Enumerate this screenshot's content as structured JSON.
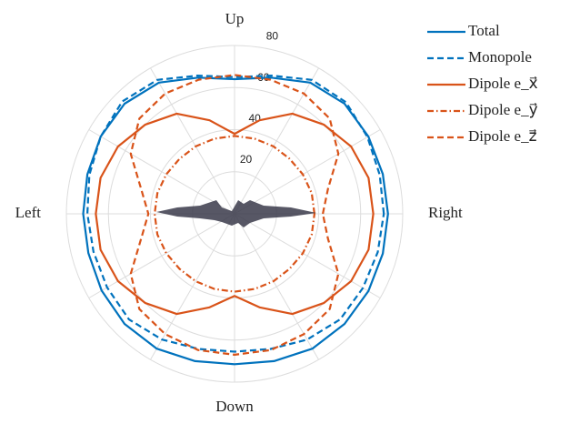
{
  "chart_data": {
    "type": "polar",
    "theta": [
      0,
      15,
      30,
      45,
      60,
      75,
      90,
      105,
      120,
      135,
      150,
      165,
      180,
      195,
      210,
      225,
      240,
      255,
      270,
      285,
      300,
      315,
      330,
      345
    ],
    "rlim": [
      0,
      80
    ],
    "rticks": [
      20,
      40,
      60,
      80
    ],
    "thetagrid": [
      0,
      30,
      60,
      90,
      120,
      150,
      180,
      210,
      240,
      270,
      300,
      330
    ],
    "thetaticks": [
      {
        "value": 90,
        "label": "Up"
      },
      {
        "value": 0,
        "label": "Right"
      },
      {
        "value": 180,
        "label": "Left"
      },
      {
        "value": 270,
        "label": "Down"
      }
    ],
    "series": [
      {
        "name": "Total",
        "color": "#0072bd",
        "linestyle": "solid",
        "values": [
          73,
          73,
          73.5,
          74,
          72,
          67,
          64,
          67,
          72,
          74,
          73.5,
          72.5,
          72,
          72,
          73,
          74,
          74,
          72.5,
          71.5,
          72.5,
          74,
          74,
          73.5,
          73
        ]
      },
      {
        "name": "Monopole",
        "color": "#0072bd",
        "linestyle": "dashed",
        "values": [
          71,
          71.5,
          73,
          75,
          73.5,
          68,
          65,
          68,
          73.5,
          75.5,
          73.5,
          71.5,
          70,
          69.5,
          70,
          71,
          69,
          66.5,
          65.5,
          66.5,
          69,
          71,
          70.5,
          70.5
        ]
      },
      {
        "name": "Dipole e_x⃗",
        "color": "#d95319",
        "linestyle": "solid",
        "values": [
          66,
          66,
          64,
          60,
          55,
          46,
          38,
          46,
          55,
          60,
          64,
          66,
          66,
          66,
          64,
          60,
          55,
          46,
          39,
          46,
          55,
          60,
          64,
          66
        ]
      },
      {
        "name": "Dipole e_y⃗",
        "color": "#d95319",
        "linestyle": "dashdot",
        "values": [
          38,
          38,
          37.5,
          37,
          37,
          37,
          37,
          37,
          37,
          37,
          37.5,
          38,
          38,
          38,
          37.5,
          37,
          37,
          37,
          37,
          37,
          37,
          37,
          37.5,
          38
        ]
      },
      {
        "name": "Dipole e_z⃗",
        "color": "#d95319",
        "linestyle": "dashed",
        "values": [
          42,
          46,
          57,
          64,
          66,
          66,
          66,
          66,
          66,
          64,
          57,
          46,
          41,
          46,
          57,
          64,
          66,
          67,
          67,
          67,
          66,
          64,
          57,
          46
        ]
      }
    ]
  }
}
